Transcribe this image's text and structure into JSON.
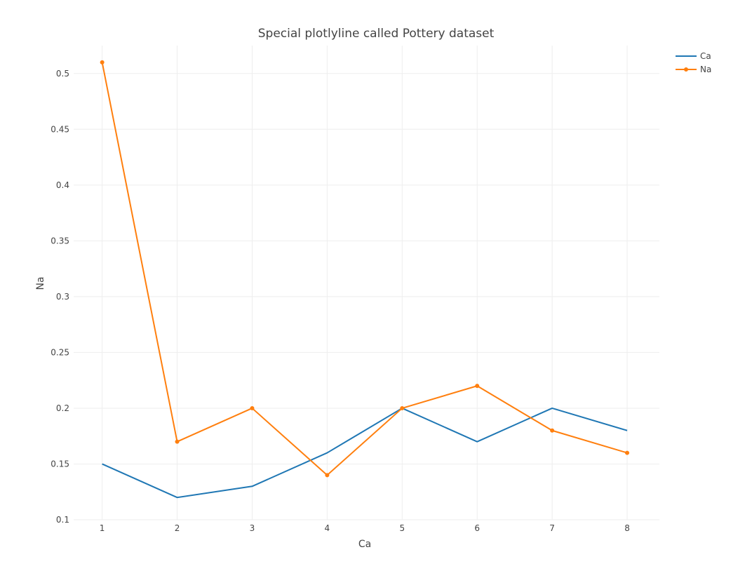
{
  "chart_data": {
    "type": "line",
    "title": "Special plotlyline called Pottery dataset",
    "xlabel": "Ca",
    "ylabel": "Na",
    "x": [
      1,
      2,
      3,
      4,
      5,
      6,
      7,
      8
    ],
    "xticks": [
      "1",
      "2",
      "3",
      "4",
      "5",
      "6",
      "7",
      "8"
    ],
    "yticks": [
      "0.1",
      "0.15",
      "0.2",
      "0.25",
      "0.3",
      "0.35",
      "0.4",
      "0.45",
      "0.5"
    ],
    "xlim": [
      0.62,
      8.43
    ],
    "ylim": [
      0.1,
      0.525
    ],
    "grid": true,
    "legend_position": "top-right",
    "series": [
      {
        "name": "Ca",
        "values": [
          0.15,
          0.12,
          0.13,
          0.16,
          0.2,
          0.17,
          0.2,
          0.18
        ],
        "color": "#1f77b4",
        "markers": false
      },
      {
        "name": "Na",
        "values": [
          0.51,
          0.17,
          0.2,
          0.14,
          0.2,
          0.22,
          0.18,
          0.16
        ],
        "color": "#ff7f0e",
        "markers": true
      }
    ]
  }
}
